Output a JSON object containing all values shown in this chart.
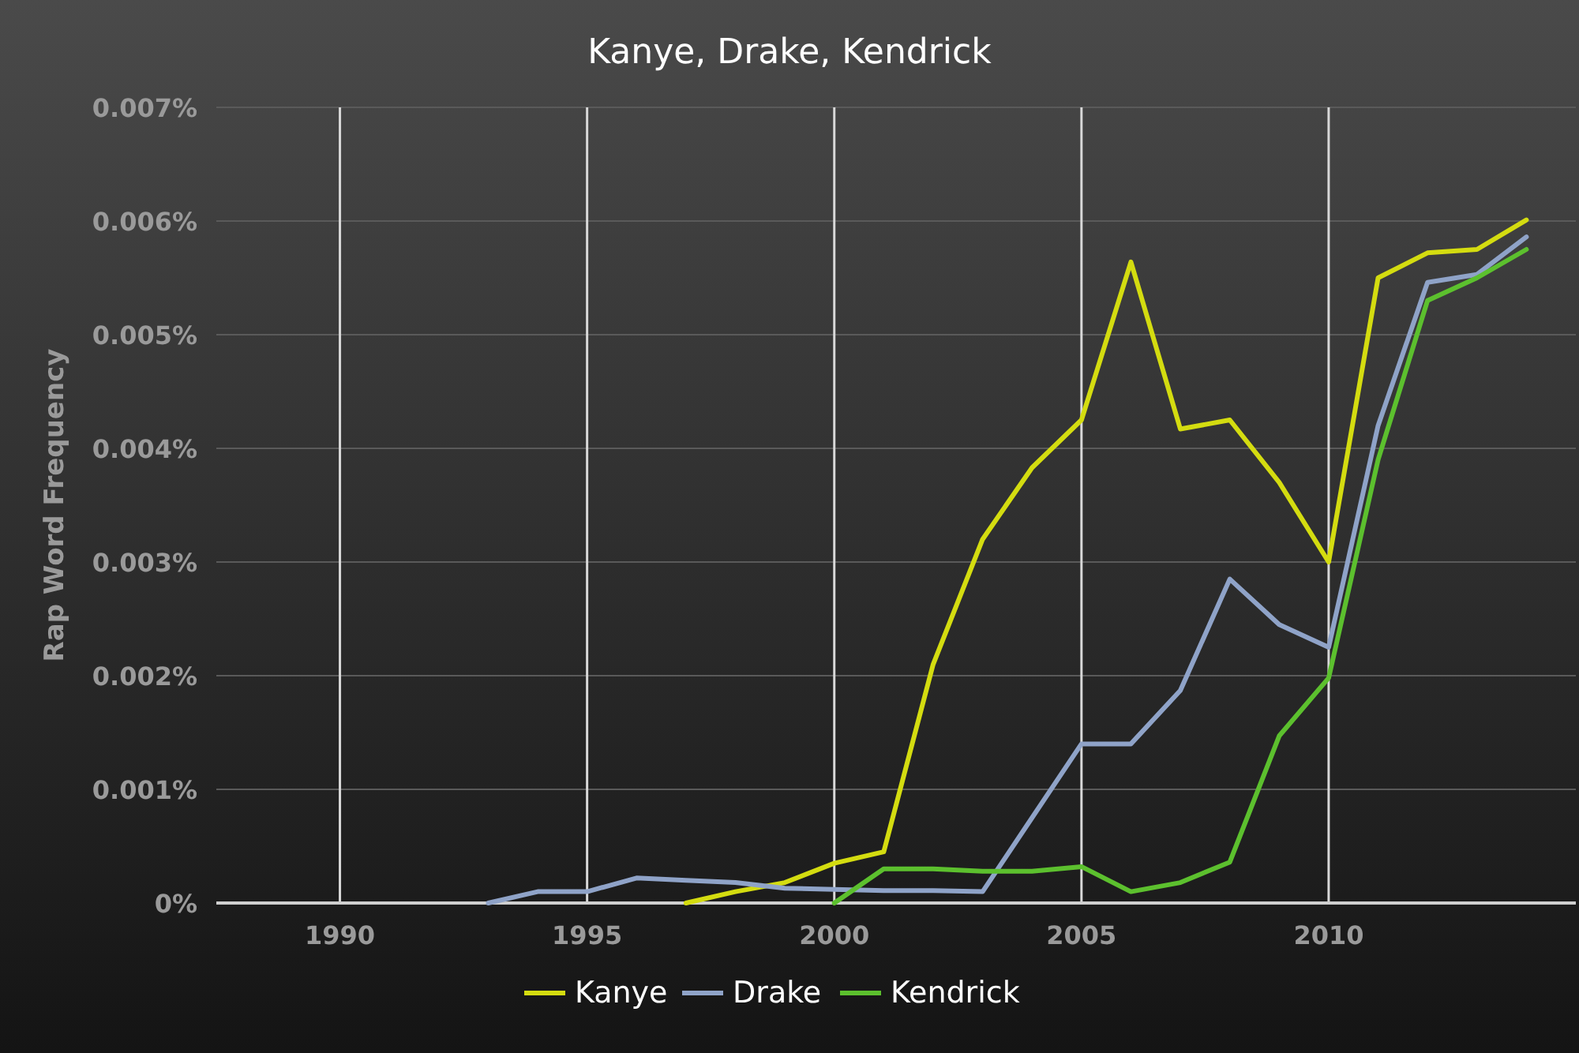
{
  "chart_data": {
    "type": "line",
    "title": "Kanye, Drake, Kendrick",
    "ylabel": "Rap Word Frequency",
    "xlim": [
      1987.5,
      2015
    ],
    "xticks": [
      1990,
      1995,
      2000,
      2005,
      2010
    ],
    "ylim": [
      0,
      0.007
    ],
    "yticks": [
      {
        "value": 0,
        "label": "0%"
      },
      {
        "value": 0.001,
        "label": "0.001%"
      },
      {
        "value": 0.002,
        "label": "0.002%"
      },
      {
        "value": 0.003,
        "label": "0.003%"
      },
      {
        "value": 0.004,
        "label": "0.004%"
      },
      {
        "value": 0.005,
        "label": "0.005%"
      },
      {
        "value": 0.006,
        "label": "0.006%"
      },
      {
        "value": 0.007,
        "label": "0.007%"
      }
    ],
    "grid": true,
    "legend": "bottom",
    "marker": "none",
    "line_style": "solid",
    "series": [
      {
        "name": "Kanye",
        "color": "#d4dc10",
        "x": [
          1997,
          1998,
          1999,
          2000,
          2001,
          2002,
          2003,
          2004,
          2005,
          2006,
          2007,
          2008,
          2009,
          2010,
          2011,
          2012,
          2013,
          2014
        ],
        "values": [
          0,
          0.0001,
          0.00018,
          0.00035,
          0.00045,
          0.0021,
          0.0032,
          0.00383,
          0.00425,
          0.00564,
          0.00417,
          0.00425,
          0.0037,
          0.003,
          0.0055,
          0.00572,
          0.00575,
          0.00601
        ]
      },
      {
        "name": "Drake",
        "color": "#8fa3c8",
        "x": [
          1993,
          1994,
          1995,
          1996,
          1997,
          1998,
          1999,
          2000,
          2001,
          2002,
          2003,
          2004,
          2005,
          2006,
          2007,
          2008,
          2009,
          2010,
          2011,
          2012,
          2013,
          2014
        ],
        "values": [
          0,
          0.0001,
          0.0001,
          0.00022,
          0.0002,
          0.00018,
          0.00013,
          0.00012,
          0.00011,
          0.00011,
          0.0001,
          0.00075,
          0.0014,
          0.0014,
          0.00187,
          0.00285,
          0.00245,
          0.00225,
          0.0042,
          0.00546,
          0.00553,
          0.00586
        ]
      },
      {
        "name": "Kendrick",
        "color": "#5cc02e",
        "x": [
          2000,
          2001,
          2002,
          2003,
          2004,
          2005,
          2006,
          2007,
          2008,
          2009,
          2010,
          2011,
          2012,
          2013,
          2014
        ],
        "values": [
          0,
          0.0003,
          0.0003,
          0.00028,
          0.00028,
          0.00032,
          0.0001,
          0.00018,
          0.00036,
          0.00147,
          0.00198,
          0.0039,
          0.0053,
          0.0055,
          0.00575
        ]
      }
    ]
  }
}
